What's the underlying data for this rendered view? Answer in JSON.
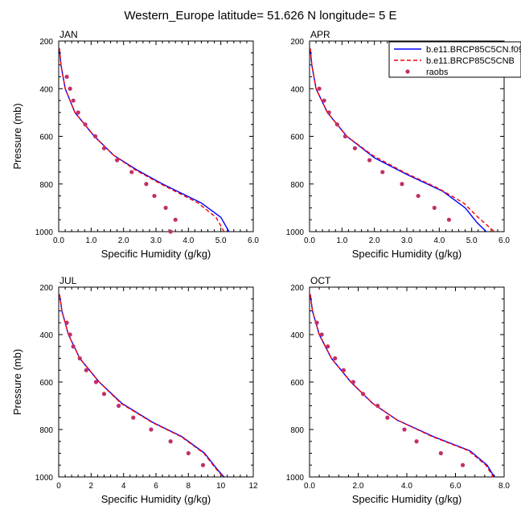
{
  "title": "Western_Europe  latitude= 51.626 N longitude= 5 E",
  "colors": {
    "model1": "#0000ff",
    "model2": "#ff0000",
    "raobs": "#c0306a"
  },
  "legend": {
    "items": [
      {
        "label": "b.e11.BRCP85C5CN.f09",
        "style": "solid-line"
      },
      {
        "label": "b.e11.BRCP85C5CNB",
        "style": "dashed-line"
      },
      {
        "label": "raobs",
        "style": "dot"
      }
    ]
  },
  "chart_data": [
    {
      "type": "line",
      "panel": "JAN",
      "xlabel": "Specific Humidity (g/kg)",
      "ylabel": "Pressure (mb)",
      "xlim": [
        0,
        6
      ],
      "ylim": [
        200,
        1000
      ],
      "y_inverted": true,
      "xticks": [
        "0.0",
        "1.0",
        "2.0",
        "3.0",
        "4.0",
        "5.0",
        "6.0"
      ],
      "yticks": [
        "200",
        "400",
        "600",
        "800",
        "1000"
      ],
      "series": [
        {
          "name": "b.e11.BRCP85C5CN.f09",
          "points": [
            [
              0.02,
              230
            ],
            [
              0.07,
              300
            ],
            [
              0.2,
              400
            ],
            [
              0.5,
              500
            ],
            [
              1.1,
              600
            ],
            [
              1.7,
              680
            ],
            [
              2.4,
              740
            ],
            [
              3.2,
              800
            ],
            [
              4.4,
              880
            ],
            [
              5.0,
              940
            ],
            [
              5.25,
              1000
            ]
          ]
        },
        {
          "name": "b.e11.BRCP85C5CNB",
          "points": [
            [
              0.02,
              230
            ],
            [
              0.07,
              300
            ],
            [
              0.2,
              400
            ],
            [
              0.5,
              500
            ],
            [
              1.1,
              600
            ],
            [
              1.7,
              680
            ],
            [
              2.35,
              740
            ],
            [
              3.15,
              800
            ],
            [
              4.3,
              880
            ],
            [
              4.85,
              940
            ],
            [
              5.1,
              1000
            ]
          ]
        },
        {
          "name": "raobs",
          "points": [
            [
              0.25,
              350
            ],
            [
              0.35,
              400
            ],
            [
              0.45,
              450
            ],
            [
              0.6,
              500
            ],
            [
              0.82,
              550
            ],
            [
              1.13,
              600
            ],
            [
              1.4,
              650
            ],
            [
              1.8,
              700
            ],
            [
              2.25,
              750
            ],
            [
              2.7,
              800
            ],
            [
              2.95,
              850
            ],
            [
              3.3,
              900
            ],
            [
              3.6,
              950
            ],
            [
              3.45,
              1000
            ]
          ]
        }
      ]
    },
    {
      "type": "line",
      "panel": "APR",
      "xlabel": "Specific Humidity (g/kg)",
      "ylabel": "",
      "xlim": [
        0,
        6
      ],
      "ylim": [
        200,
        1000
      ],
      "y_inverted": true,
      "xticks": [
        "0.0",
        "1.0",
        "2.0",
        "3.0",
        "4.0",
        "5.0",
        "6.0"
      ],
      "yticks": [
        "200",
        "400",
        "600",
        "800",
        "1000"
      ],
      "series": [
        {
          "name": "b.e11.BRCP85C5CN.f09",
          "points": [
            [
              0.02,
              230
            ],
            [
              0.07,
              300
            ],
            [
              0.2,
              400
            ],
            [
              0.55,
              500
            ],
            [
              1.15,
              600
            ],
            [
              2.0,
              690
            ],
            [
              3.0,
              760
            ],
            [
              4.1,
              830
            ],
            [
              4.8,
              900
            ],
            [
              5.15,
              960
            ],
            [
              5.45,
              1000
            ]
          ]
        },
        {
          "name": "b.e11.BRCP85C5CNB",
          "points": [
            [
              0.02,
              230
            ],
            [
              0.07,
              300
            ],
            [
              0.2,
              400
            ],
            [
              0.55,
              500
            ],
            [
              1.15,
              600
            ],
            [
              1.95,
              680
            ],
            [
              2.9,
              750
            ],
            [
              4.0,
              820
            ],
            [
              4.75,
              880
            ],
            [
              5.2,
              940
            ],
            [
              5.7,
              1000
            ]
          ]
        },
        {
          "name": "raobs",
          "points": [
            [
              0.3,
              400
            ],
            [
              0.45,
              450
            ],
            [
              0.6,
              500
            ],
            [
              0.85,
              550
            ],
            [
              1.1,
              600
            ],
            [
              1.4,
              650
            ],
            [
              1.85,
              700
            ],
            [
              2.25,
              750
            ],
            [
              2.85,
              800
            ],
            [
              3.35,
              850
            ],
            [
              3.85,
              900
            ],
            [
              4.3,
              950
            ]
          ]
        }
      ]
    },
    {
      "type": "line",
      "panel": "JUL",
      "xlabel": "Specific Humidity (g/kg)",
      "ylabel": "Pressure (mb)",
      "xlim": [
        0,
        12
      ],
      "ylim": [
        200,
        1000
      ],
      "y_inverted": true,
      "xticks": [
        "0",
        "2",
        "4",
        "6",
        "8",
        "10",
        "12"
      ],
      "yticks": [
        "200",
        "400",
        "600",
        "800",
        "1000"
      ],
      "series": [
        {
          "name": "b.e11.BRCP85C5CN.f09",
          "points": [
            [
              0.05,
              230
            ],
            [
              0.2,
              300
            ],
            [
              0.6,
              400
            ],
            [
              1.3,
              500
            ],
            [
              2.5,
              600
            ],
            [
              3.9,
              690
            ],
            [
              5.8,
              770
            ],
            [
              7.6,
              830
            ],
            [
              9.0,
              900
            ],
            [
              9.8,
              970
            ],
            [
              10.2,
              1000
            ]
          ]
        },
        {
          "name": "b.e11.BRCP85C5CNB",
          "points": [
            [
              0.05,
              230
            ],
            [
              0.2,
              300
            ],
            [
              0.6,
              400
            ],
            [
              1.3,
              500
            ],
            [
              2.5,
              600
            ],
            [
              3.85,
              690
            ],
            [
              5.75,
              770
            ],
            [
              7.55,
              830
            ],
            [
              8.95,
              900
            ],
            [
              9.75,
              970
            ],
            [
              10.15,
              1000
            ]
          ]
        },
        {
          "name": "raobs",
          "points": [
            [
              0.5,
              350
            ],
            [
              0.7,
              400
            ],
            [
              0.9,
              450
            ],
            [
              1.3,
              500
            ],
            [
              1.7,
              550
            ],
            [
              2.3,
              600
            ],
            [
              2.8,
              650
            ],
            [
              3.7,
              700
            ],
            [
              4.6,
              750
            ],
            [
              5.7,
              800
            ],
            [
              6.9,
              850
            ],
            [
              8.0,
              900
            ],
            [
              8.9,
              950
            ]
          ]
        }
      ]
    },
    {
      "type": "line",
      "panel": "OCT",
      "xlabel": "Specific Humidity (g/kg)",
      "ylabel": "",
      "xlim": [
        0,
        8
      ],
      "ylim": [
        200,
        1000
      ],
      "y_inverted": true,
      "xticks": [
        "0.0",
        "2.0",
        "4.0",
        "6.0",
        "8.0"
      ],
      "yticks": [
        "200",
        "400",
        "600",
        "800",
        "1000"
      ],
      "series": [
        {
          "name": "b.e11.BRCP85C5CN.f09",
          "points": [
            [
              0.03,
              230
            ],
            [
              0.12,
              300
            ],
            [
              0.4,
              400
            ],
            [
              0.9,
              500
            ],
            [
              1.7,
              600
            ],
            [
              2.6,
              690
            ],
            [
              3.6,
              760
            ],
            [
              5.1,
              830
            ],
            [
              6.6,
              890
            ],
            [
              7.3,
              950
            ],
            [
              7.6,
              1000
            ]
          ]
        },
        {
          "name": "b.e11.BRCP85C5CNB",
          "points": [
            [
              0.03,
              230
            ],
            [
              0.12,
              300
            ],
            [
              0.4,
              400
            ],
            [
              0.9,
              500
            ],
            [
              1.7,
              600
            ],
            [
              2.6,
              690
            ],
            [
              3.6,
              760
            ],
            [
              5.05,
              830
            ],
            [
              6.55,
              890
            ],
            [
              7.25,
              950
            ],
            [
              7.55,
              1000
            ]
          ]
        },
        {
          "name": "raobs",
          "points": [
            [
              0.3,
              350
            ],
            [
              0.5,
              400
            ],
            [
              0.75,
              450
            ],
            [
              1.05,
              500
            ],
            [
              1.4,
              550
            ],
            [
              1.8,
              600
            ],
            [
              2.2,
              650
            ],
            [
              2.8,
              700
            ],
            [
              3.2,
              750
            ],
            [
              3.9,
              800
            ],
            [
              4.4,
              850
            ],
            [
              5.4,
              900
            ],
            [
              6.3,
              950
            ]
          ]
        }
      ]
    }
  ]
}
